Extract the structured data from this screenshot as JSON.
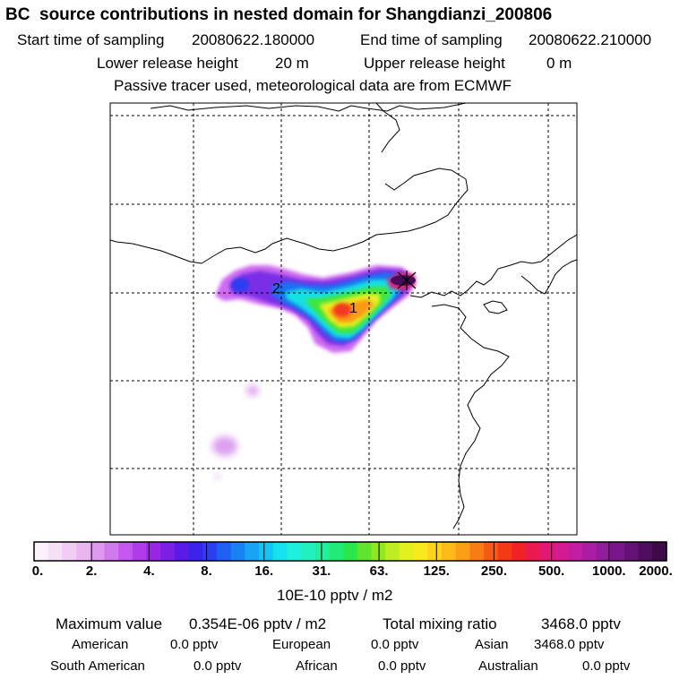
{
  "header": {
    "title": "BC  source contributions in nested domain for Shangdianzi_200806",
    "start_label": "Start time of sampling",
    "start_value": "20080622.180000",
    "end_label": "End time of sampling",
    "end_value": "20080622.210000",
    "lower_label": "Lower release height",
    "lower_value": "20 m",
    "upper_label": "Upper release height",
    "upper_value": "0 m",
    "note": "Passive tracer used, meteorological data are from ECMWF"
  },
  "map": {
    "markers": [
      {
        "label": "2",
        "kind": "cluster-center"
      },
      {
        "label": "1",
        "kind": "cluster-center"
      }
    ],
    "receptor": "Shangdianzi"
  },
  "colorbar": {
    "ticks": [
      "0.",
      "2.",
      "4.",
      "8.",
      "16.",
      "31.",
      "63.",
      "125.",
      "250.",
      "500.",
      "1000.",
      "2000."
    ],
    "colors": [
      "#fbf2fb",
      "#f6e0f8",
      "#f1ccf5",
      "#e9b6f2",
      "#df99ef",
      "#d07aed",
      "#c357ee",
      "#b23be8",
      "#9a26e3",
      "#7b1fe3",
      "#5c1ae6",
      "#3c22ea",
      "#2a3ff0",
      "#1e60f2",
      "#1a82f3",
      "#18a3f3",
      "#16c2f2",
      "#17e0ef",
      "#1ff0dd",
      "#22f0c0",
      "#22ee9e",
      "#20ea78",
      "#2ae64e",
      "#5ee52c",
      "#8fe822",
      "#bded22",
      "#e3f020",
      "#f8ea1c",
      "#fdd41a",
      "#fdba18",
      "#fb9d16",
      "#f87c14",
      "#f55a13",
      "#f23b16",
      "#ef2226",
      "#ea1a4e",
      "#e21874",
      "#d51a90",
      "#c21da0",
      "#ab1ea4",
      "#921c9c",
      "#7a168c",
      "#641276",
      "#4f0d5e",
      "#3e0a4a"
    ],
    "unit": "10E-10 pptv / m2"
  },
  "stats": {
    "max_label": "Maximum value",
    "max_value": "0.354E-06 pptv / m2",
    "total_label": "Total mixing ratio",
    "total_value": "3468.0 pptv",
    "american_label": "American",
    "american_value": "0.0 pptv",
    "european_label": "European",
    "european_value": "0.0 pptv",
    "asian_label": "Asian",
    "asian_value": "3468.0 pptv",
    "southam_label": "South American",
    "southam_value": "0.0 pptv",
    "african_label": "African",
    "african_value": "0.0 pptv",
    "australian_label": "Australian",
    "australian_value": "0.0 pptv"
  }
}
